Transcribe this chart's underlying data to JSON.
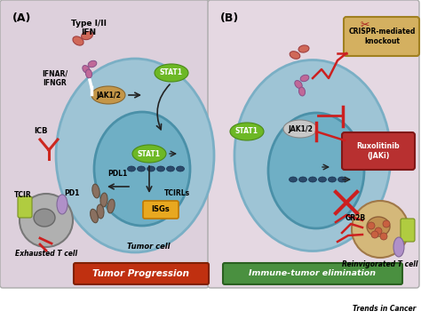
{
  "bg_left": "#ddd0dc",
  "bg_right": "#e5d8e2",
  "cell_outer_color": "#9ec4d5",
  "cell_outer_edge": "#7aafc5",
  "nucleus_color": "#6fafc5",
  "nucleus_edge": "#4a90a8",
  "stat1_green": "#6db825",
  "stat1_edge": "#4a8a18",
  "jak_tan": "#c49648",
  "jak_edge": "#8a6830",
  "isg_yellow": "#e8a820",
  "isg_edge": "#c07800",
  "red_arrow": "#cc2020",
  "dark_arrow": "#222222",
  "tp_box_face": "#c03010",
  "tp_box_edge": "#802000",
  "ie_box_face": "#4a9040",
  "ie_box_edge": "#2a6020",
  "crispr_box_face": "#d4b060",
  "crispr_box_edge": "#a08020",
  "ruxo_box_face": "#b83030",
  "ruxo_box_edge": "#801818",
  "tcell_gray": "#b0b0b0",
  "tcell_nucleus": "#909090",
  "tcell_beige": "#d4b87a",
  "tcell_beige_nucleus": "#c09050",
  "tcell_granule": "#c86040",
  "green_receptor": "#b0cc40",
  "purple_receptor": "#b090c8",
  "pdl1_taupe": "#8a7060",
  "icb_red": "#cc2820",
  "ifn_salmon": "#d06858",
  "ifnar_purple": "#c06898",
  "dna_dark": "#2a4a6a",
  "panel_a_label": "(A)",
  "panel_b_label": "(B)",
  "label_ifn": "Type I/II\nIFN",
  "label_ifnar": "IFNAR/\nIFNGR",
  "label_jak": "JAK1/2",
  "label_stat1": "STAT1",
  "label_pdl1": "PDL1",
  "label_tcirls": "TCIRLs",
  "label_isgs": "ISGs",
  "label_icb": "ICB",
  "label_tcir": "TCIR",
  "label_pd1": "PD1",
  "label_exhausted": "Exhausted T cell",
  "label_tumor_cell": "Tumor cell",
  "label_tumor_prog": "Tumor Progression",
  "label_reinvig": "Reinvigorated T cell",
  "label_immune_elim": "Immune-tumor elimination",
  "label_crispr": "CRISPR-mediated\nknockout",
  "label_ruxo": "Ruxolitinib\n(JAKi)",
  "label_grzb": "GR2B",
  "watermark": "Trends in Cancer"
}
